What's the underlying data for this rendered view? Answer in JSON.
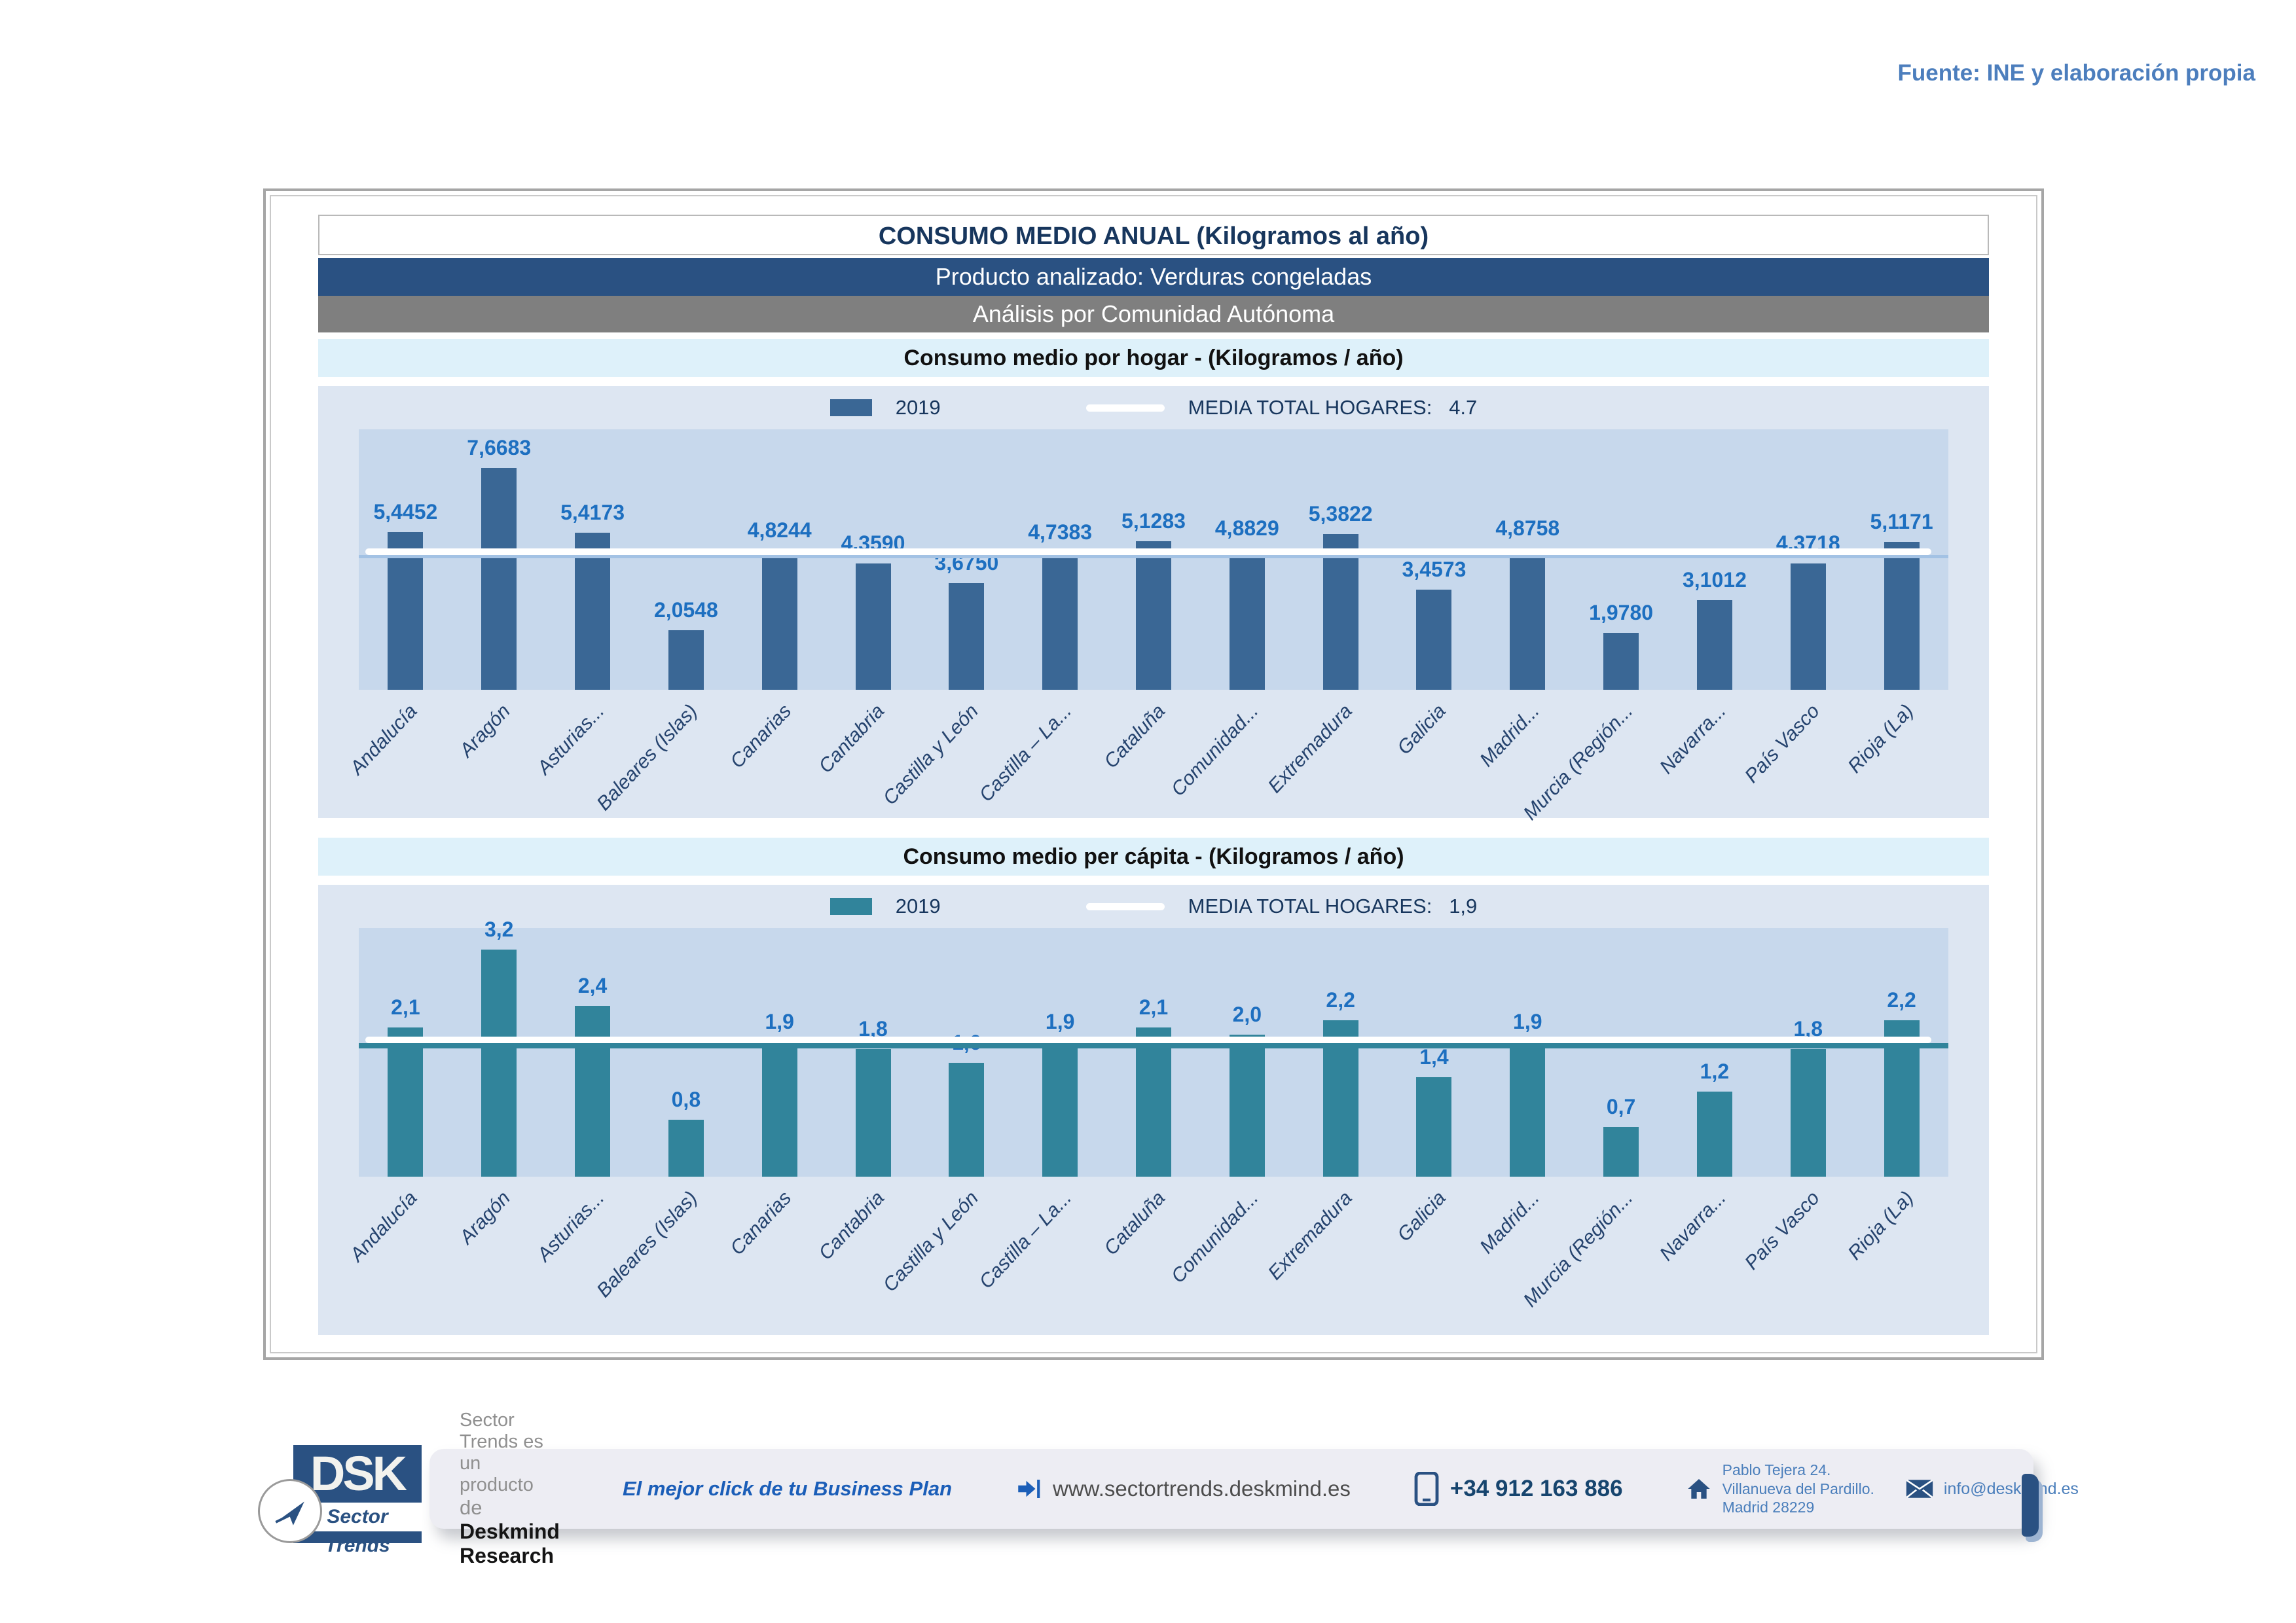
{
  "fuente": "Fuente: INE y elaboración propia",
  "header": {
    "title": "CONSUMO MEDIO ANUAL (Kilogramos al año)",
    "product_row": "Producto analizado: Verduras congeladas",
    "analysis_row": "Análisis por Comunidad Autónoma"
  },
  "accent_colors": {
    "dark_band": "#2a5182",
    "gray_band": "#7f7f7f",
    "cyan_band": "#def1fa",
    "chart_bg": "#dde6f2",
    "plot_bg": "#c7d8ec",
    "value_label_blue": "#1d6fc0",
    "source_blue": "#4c7ebd"
  },
  "chart_data": [
    {
      "type": "bar",
      "title": "Consumo medio por hogar -  (Kilogramos / año)",
      "legend": {
        "series_label": "2019",
        "media_label": "MEDIA TOTAL  HOGARES:",
        "media_value": "4.7"
      },
      "categories": [
        "Andalucía",
        "Aragón",
        "Asturias...",
        "Baleares (Islas)",
        "Canarias",
        "Cantabria",
        "Castilla y León",
        "Castilla – La...",
        "Cataluña",
        "Comunidad...",
        "Extremadura",
        "Galicia",
        "Madrid...",
        "Murcia (Región...",
        "Navarra...",
        "País Vasco",
        "Rioja (La)"
      ],
      "values": [
        5.4452,
        7.6683,
        5.4173,
        2.0548,
        4.8244,
        4.359,
        3.675,
        4.7383,
        5.1283,
        4.8829,
        5.3822,
        3.4573,
        4.8758,
        1.978,
        3.1012,
        4.3718,
        5.1171
      ],
      "value_labels": [
        "5,4452",
        "7,6683",
        "5,4173",
        "2,0548",
        "4,8244",
        "4,3590",
        "3,6750",
        "4,7383",
        "5,1283",
        "4,8829",
        "5,3822",
        "3,4573",
        "4,8758",
        "1,9780",
        "3,1012",
        "4,3718",
        "5,1171"
      ],
      "media": 4.7,
      "ylim": [
        0,
        9
      ],
      "bar_color": "#3a6795",
      "underline_color": "#a3c2e4",
      "xlabel": "",
      "ylabel": "",
      "legend_position": "top-center",
      "grid": false
    },
    {
      "type": "bar",
      "title": "Consumo medio per cápita -  (Kilogramos / año)",
      "legend": {
        "series_label": "2019",
        "media_label": "MEDIA TOTAL  HOGARES:",
        "media_value": "1,9"
      },
      "categories": [
        "Andalucía",
        "Aragón",
        "Asturias...",
        "Baleares (Islas)",
        "Canarias",
        "Cantabria",
        "Castilla y León",
        "Castilla – La...",
        "Cataluña",
        "Comunidad...",
        "Extremadura",
        "Galicia",
        "Madrid...",
        "Murcia (Región...",
        "Navarra...",
        "País Vasco",
        "Rioja (La)"
      ],
      "values": [
        2.1,
        3.2,
        2.4,
        0.8,
        1.9,
        1.8,
        1.6,
        1.9,
        2.1,
        2.0,
        2.2,
        1.4,
        1.9,
        0.7,
        1.2,
        1.8,
        2.2
      ],
      "value_labels": [
        "2,1",
        "3,2",
        "2,4",
        "0,8",
        "1,9",
        "1,8",
        "1,6",
        "1,9",
        "2,1",
        "2,0",
        "2,2",
        "1,4",
        "1,9",
        "0,7",
        "1,2",
        "1,8",
        "2,2"
      ],
      "media": 1.9,
      "ylim": [
        0,
        3.5
      ],
      "bar_color": "#31849b",
      "underline_color": "#31849b",
      "xlabel": "",
      "ylabel": "",
      "legend_position": "top-center",
      "grid": false
    }
  ],
  "footer": {
    "logo": {
      "acronym": "DSK",
      "subtitle": "Sector Trends",
      "plane_icon": "paper-plane-icon"
    },
    "product_line1": "Sector Trends es un producto",
    "product_line2_prefix": "de ",
    "product_line2_bold": "Deskmind Research",
    "slogan": "El mejor click de tu Business Plan",
    "url": "www.sectortrends.deskmind.es",
    "url_icon": "arrow-icon",
    "phone": "+34 912 163 886",
    "phone_icon": "phone-icon",
    "address_line1": "Pablo Tejera 24.",
    "address_line2": "Villanueva del Pardillo.",
    "address_line3": "Madrid 28229",
    "address_icon": "home-icon",
    "email": "info@deskmind.es",
    "email_icon": "mail-icon"
  }
}
